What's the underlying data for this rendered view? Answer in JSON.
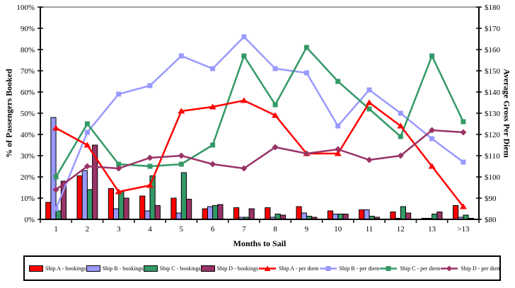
{
  "chart_data": {
    "type": "combo-bar-line",
    "xlabel": "Months to Sail",
    "ylabel_left": "% of Passengers Booked",
    "ylabel_right": "Average Gross Per Diem",
    "categories": [
      "1",
      "2",
      "3",
      "4",
      "5",
      "6",
      "7",
      "8",
      "9",
      "10",
      "11",
      "12",
      "13",
      ">13"
    ],
    "y_left_axis": {
      "min": 0,
      "max": 100,
      "step": 10,
      "format": "percent"
    },
    "y_right_axis": {
      "min": 80,
      "max": 180,
      "step": 10,
      "format": "dollar"
    },
    "y_left_ticks": [
      "100%",
      "90%",
      "80%",
      "70%",
      "60%",
      "50%",
      "40%",
      "30%",
      "20%",
      "10%",
      "0%"
    ],
    "y_right_ticks": [
      "$180",
      "$170",
      "$160",
      "$150",
      "$140",
      "$130",
      "$120",
      "$110",
      "$100",
      "$90",
      "$80"
    ],
    "grid": false,
    "legend_position": "bottom",
    "bar_series": [
      {
        "name": "Ship A - bookings",
        "color": "#FF0000",
        "axis": "left",
        "values": [
          8,
          20.5,
          14.5,
          11,
          10,
          5,
          5.5,
          5.5,
          6,
          4,
          4.5,
          3.5,
          0.5,
          6.5
        ]
      },
      {
        "name": "Ship B - bookings",
        "color": "#9999FF",
        "axis": "left",
        "values": [
          48,
          23,
          5,
          4,
          3,
          6,
          1,
          1,
          3,
          2.5,
          4.5,
          0.5,
          0.5,
          1
        ]
      },
      {
        "name": "Ship C - bookings",
        "color": "#339966",
        "axis": "left",
        "values": [
          4,
          14,
          13,
          20.5,
          22,
          6.5,
          1,
          2.5,
          1.5,
          2.5,
          1.5,
          6,
          2.5,
          2
        ]
      },
      {
        "name": "Ship D - bookings",
        "color": "#993366",
        "axis": "left",
        "values": [
          18,
          35,
          10,
          6.5,
          9.5,
          7,
          5,
          2,
          1,
          2.5,
          1,
          3,
          3.5,
          0.5
        ]
      }
    ],
    "line_series": [
      {
        "name": "Ship B - per diem",
        "color": "#9999FF",
        "marker": "square",
        "axis": "right",
        "values": [
          85,
          121,
          139,
          143,
          157,
          151,
          166,
          151,
          149,
          124,
          141,
          130,
          118,
          107
        ]
      },
      {
        "name": "Ship C - per diem",
        "color": "#339966",
        "marker": "square",
        "axis": "right",
        "values": [
          100,
          125,
          106,
          105,
          106,
          115,
          157,
          134,
          161,
          145,
          132,
          119,
          157,
          126
        ]
      },
      {
        "name": "Ship A - per diem",
        "color": "#FF0000",
        "marker": "triangle",
        "axis": "right",
        "values": [
          123,
          115,
          93,
          96,
          131,
          133,
          136,
          129,
          111,
          111,
          135,
          124,
          105,
          86
        ]
      },
      {
        "name": "Ship D - per diem",
        "color": "#993366",
        "marker": "diamond",
        "axis": "right",
        "values": [
          94,
          105,
          104,
          109,
          110,
          106,
          104,
          114,
          111,
          113,
          108,
          110,
          122,
          121
        ]
      }
    ],
    "legend_order": [
      "Ship A - bookings",
      "Ship B - bookings",
      "Ship C - bookings",
      "Ship D - bookings",
      "Ship A - per diem",
      "Ship B - per diem",
      "Ship C - per diem",
      "Ship D - per diem"
    ],
    "colors": {
      "ship_a": "#FF0000",
      "ship_b": "#9999FF",
      "ship_c": "#339966",
      "ship_d": "#993366",
      "axis": "#000000",
      "top_gridline": "#808080",
      "background": "#FFFFFF"
    }
  }
}
